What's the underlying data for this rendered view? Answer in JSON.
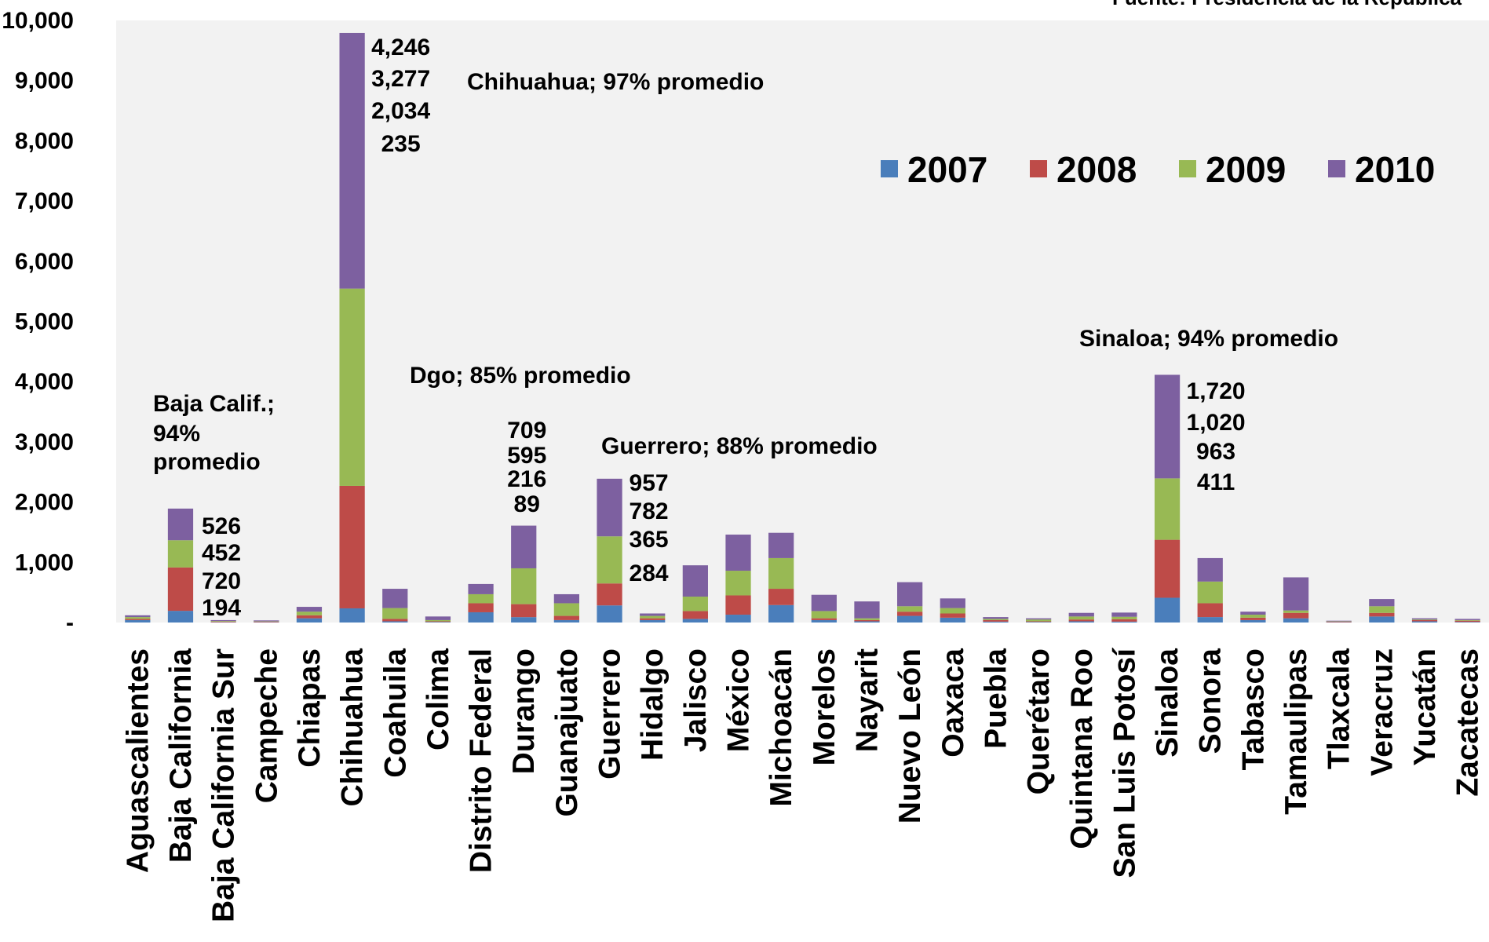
{
  "chart_data": {
    "type": "bar",
    "stacked": true,
    "source": "Fuente: Presidencia de la República",
    "categories": [
      "Aguascalientes",
      "Baja California",
      "Baja California Sur",
      "Campeche",
      "Chiapas",
      "Chihuahua",
      "Coahuila",
      "Colima",
      "Distrito Federal",
      "Durango",
      "Guanajuato",
      "Guerrero",
      "Hidalgo",
      "Jalisco",
      "México",
      "Michoacán",
      "Morelos",
      "Nayarit",
      "Nuevo León",
      "Oaxaca",
      "Puebla",
      "Querétaro",
      "Quintana Roo",
      "San Luis Potosí",
      "Sinaloa",
      "Sonora",
      "Tabasco",
      "Tamaulipas",
      "Tlaxcala",
      "Veracruz",
      "Yucatán",
      "Zacatecas"
    ],
    "series": [
      {
        "name": "2007",
        "color": "#4a7ebb",
        "values": [
          40,
          194,
          5,
          5,
          70,
          235,
          20,
          10,
          170,
          89,
          40,
          284,
          40,
          60,
          130,
          290,
          40,
          20,
          110,
          80,
          15,
          10,
          20,
          15,
          411,
          90,
          40,
          70,
          5,
          100,
          20,
          10
        ]
      },
      {
        "name": "2008",
        "color": "#be4b48",
        "values": [
          20,
          720,
          10,
          10,
          50,
          2034,
          40,
          10,
          150,
          216,
          70,
          365,
          30,
          130,
          320,
          270,
          30,
          20,
          70,
          70,
          25,
          10,
          30,
          40,
          963,
          230,
          40,
          90,
          10,
          60,
          20,
          20
        ]
      },
      {
        "name": "2009",
        "color": "#98b954",
        "values": [
          30,
          452,
          10,
          5,
          60,
          3277,
          180,
          20,
          150,
          595,
          210,
          782,
          40,
          240,
          410,
          510,
          120,
          30,
          90,
          90,
          20,
          30,
          50,
          40,
          1020,
          360,
          50,
          40,
          5,
          110,
          10,
          10
        ]
      },
      {
        "name": "2010",
        "color": "#7d60a0",
        "values": [
          30,
          526,
          15,
          15,
          80,
          4246,
          320,
          60,
          170,
          709,
          150,
          957,
          40,
          520,
          600,
          420,
          270,
          280,
          400,
          160,
          30,
          20,
          60,
          70,
          1720,
          390,
          50,
          550,
          10,
          120,
          20,
          20
        ]
      }
    ],
    "ylim": [
      0,
      10000
    ],
    "yticks": [
      0,
      1000,
      2000,
      3000,
      4000,
      5000,
      6000,
      7000,
      8000,
      9000,
      10000
    ],
    "ytick_labels": [
      "-",
      "1,000",
      "2,000",
      "3,000",
      "4,000",
      "5,000",
      "6,000",
      "7,000",
      "8,000",
      "9,000",
      "10,000"
    ],
    "legend": {
      "position": "top-right",
      "entries": [
        "2007",
        "2008",
        "2009",
        "2010"
      ]
    },
    "grid": false,
    "plot_background": "#f2f2f2",
    "data_labels": [
      {
        "category": "Baja California",
        "values": [
          "526",
          "452",
          "720",
          "194"
        ]
      },
      {
        "category": "Chihuahua",
        "values": [
          "4,246",
          "3,277",
          "2,034",
          "235"
        ]
      },
      {
        "category": "Durango",
        "values": [
          "709",
          "595",
          "216",
          "89"
        ]
      },
      {
        "category": "Guerrero",
        "values": [
          "957",
          "782",
          "365",
          "284"
        ]
      },
      {
        "category": "Sinaloa",
        "values": [
          "1,720",
          "1,020",
          "963",
          "411"
        ]
      }
    ],
    "annotations": [
      {
        "lines": [
          "Baja Calif.;",
          "94%",
          "promedio"
        ]
      },
      {
        "lines": [
          "Chihuahua; 97% promedio"
        ]
      },
      {
        "lines": [
          "Dgo; 85% promedio"
        ]
      },
      {
        "lines": [
          "Guerrero; 88% promedio"
        ]
      },
      {
        "lines": [
          "Sinaloa; 94% promedio"
        ]
      }
    ]
  }
}
